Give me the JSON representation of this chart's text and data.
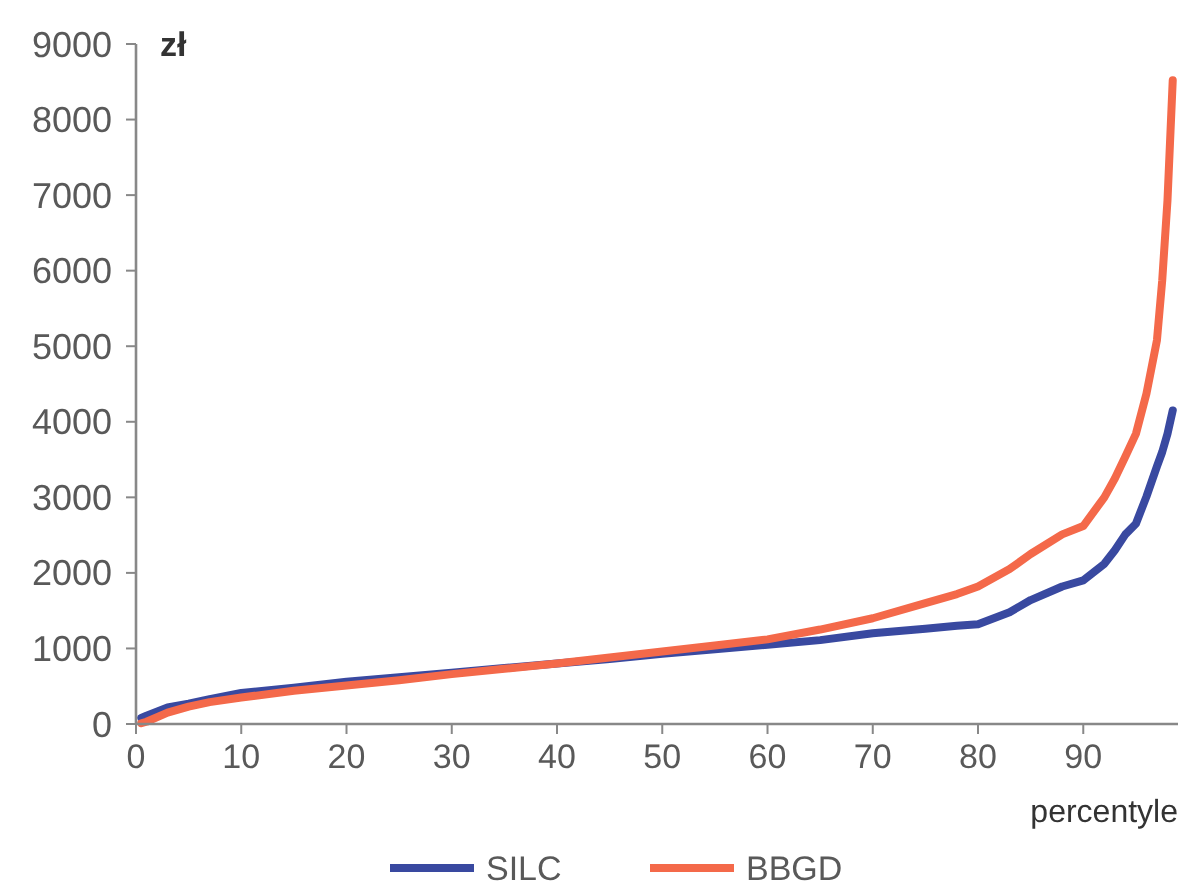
{
  "chart_data": {
    "type": "line",
    "xlabel": "percentyle",
    "ylabel": "zł",
    "xlim": [
      0,
      99
    ],
    "ylim": [
      0,
      9000
    ],
    "xticks": [
      0,
      10,
      20,
      30,
      40,
      50,
      60,
      70,
      80,
      90
    ],
    "yticks": [
      0,
      1000,
      2000,
      3000,
      4000,
      5000,
      6000,
      7000,
      8000,
      9000
    ],
    "grid": false,
    "legend": "bottom",
    "marker": "none",
    "line_style": "solid",
    "x": [
      0.5,
      1,
      3,
      5,
      7,
      10,
      15,
      20,
      25,
      30,
      35,
      40,
      45,
      50,
      55,
      60,
      65,
      70,
      75,
      78,
      80,
      83,
      85,
      88,
      90,
      92,
      93,
      94,
      95,
      96,
      97,
      97.5,
      98,
      98.5
    ],
    "series": [
      {
        "name": "SILC",
        "color": "#3949a0",
        "values": [
          80,
          110,
          220,
          270,
          330,
          410,
          480,
          560,
          620,
          680,
          740,
          800,
          860,
          930,
          990,
          1050,
          1110,
          1200,
          1260,
          1300,
          1320,
          1480,
          1640,
          1820,
          1900,
          2120,
          2300,
          2510,
          2650,
          3010,
          3410,
          3600,
          3840,
          4150
        ]
      },
      {
        "name": "BBGD",
        "color": "#f4694a",
        "values": [
          10,
          30,
          150,
          230,
          290,
          350,
          440,
          510,
          580,
          660,
          730,
          800,
          880,
          960,
          1040,
          1120,
          1250,
          1400,
          1600,
          1720,
          1820,
          2050,
          2250,
          2510,
          2620,
          3000,
          3250,
          3540,
          3840,
          4370,
          5080,
          5870,
          6930,
          8520
        ]
      }
    ]
  }
}
